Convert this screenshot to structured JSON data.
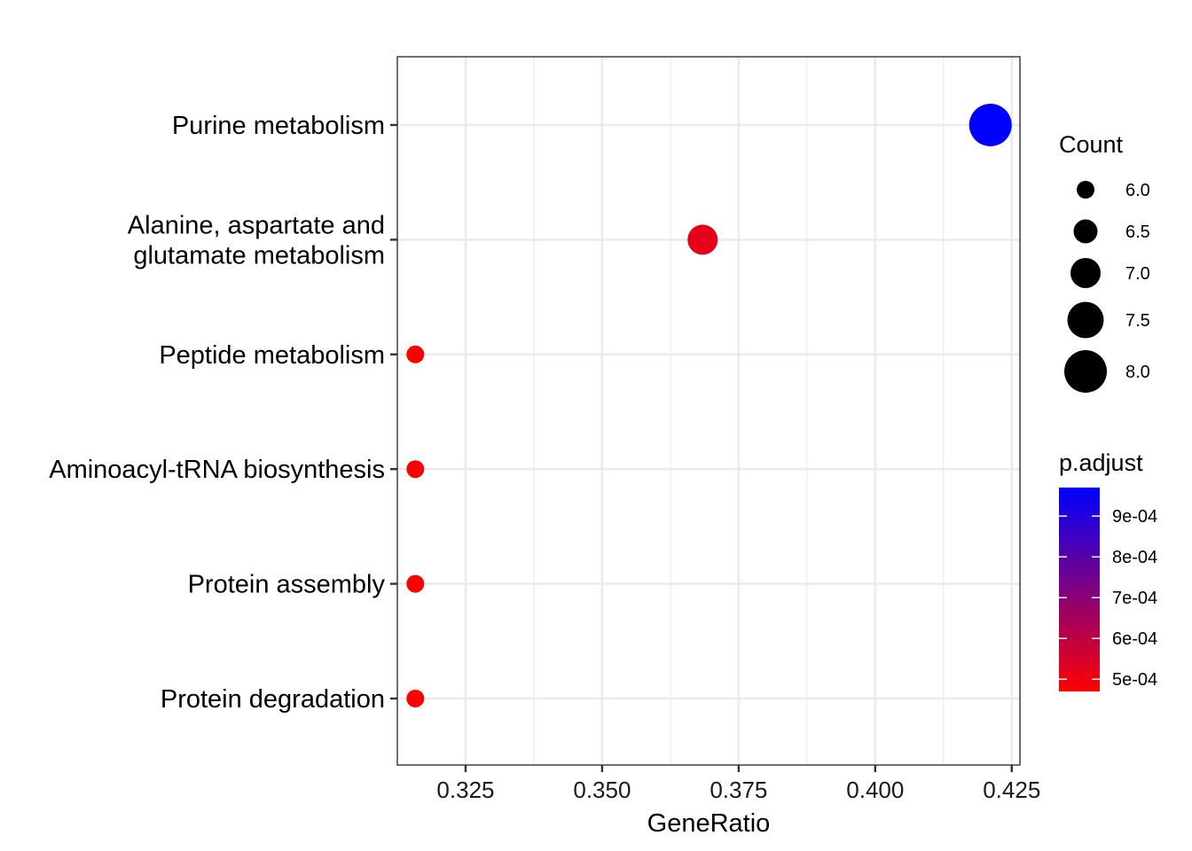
{
  "chart_data": {
    "type": "scatter",
    "title": "",
    "xlabel": "GeneRatio",
    "ylabel": "",
    "xlim": [
      0.3125,
      0.4265
    ],
    "x_ticks": [
      0.325,
      0.35,
      0.375,
      0.4,
      0.425
    ],
    "x_tick_labels": [
      "0.325",
      "0.350",
      "0.375",
      "0.400",
      "0.425"
    ],
    "grid": true,
    "categories": [
      [
        "Purine metabolism"
      ],
      [
        "Alanine, aspartate and",
        "glutamate metabolism"
      ],
      [
        "Peptide metabolism"
      ],
      [
        "Aminoacyl-tRNA biosynthesis"
      ],
      [
        "Protein assembly"
      ],
      [
        "Protein degradation"
      ]
    ],
    "points": [
      {
        "category_index": 0,
        "gene_ratio": 0.4211,
        "count": 8,
        "p_adjust": 0.00097
      },
      {
        "category_index": 1,
        "gene_ratio": 0.3684,
        "count": 7,
        "p_adjust": 0.00052
      },
      {
        "category_index": 2,
        "gene_ratio": 0.3158,
        "count": 6,
        "p_adjust": 0.00047
      },
      {
        "category_index": 3,
        "gene_ratio": 0.3158,
        "count": 6,
        "p_adjust": 0.00047
      },
      {
        "category_index": 4,
        "gene_ratio": 0.3158,
        "count": 6,
        "p_adjust": 0.00047
      },
      {
        "category_index": 5,
        "gene_ratio": 0.3158,
        "count": 6,
        "p_adjust": 0.00047
      }
    ],
    "size_legend": {
      "title": "Count",
      "position": "right",
      "values": [
        6.0,
        6.5,
        7.0,
        7.5,
        8.0
      ],
      "labels": [
        "6.0",
        "6.5",
        "7.0",
        "7.5",
        "8.0"
      ]
    },
    "color_legend": {
      "title": "p.adjust",
      "position": "right",
      "low_color": "#ff0000",
      "high_color": "#0000ff",
      "range": [
        0.00047,
        0.00097
      ],
      "ticks": [
        0.0005,
        0.0006,
        0.0007,
        0.0008,
        0.0009
      ],
      "tick_labels": [
        "5e-04",
        "6e-04",
        "7e-04",
        "8e-04",
        "9e-04"
      ]
    }
  }
}
